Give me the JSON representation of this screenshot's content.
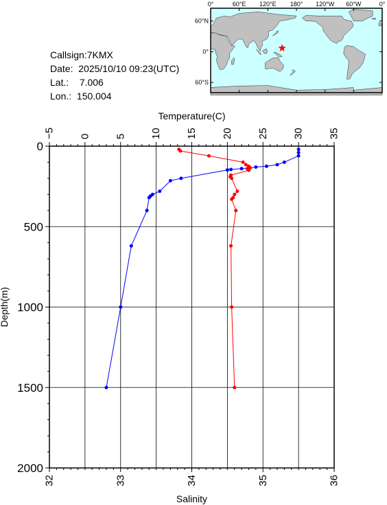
{
  "station": {
    "callsign_label": "Callsign:",
    "callsign": "7KMX",
    "date_label": "Date:",
    "date": "2025/10/10 09:23(UTC)",
    "lat_label": "Lat.:",
    "lat": "7.006",
    "lon_label": "Lon.:",
    "lon": "150.004"
  },
  "map": {
    "top_ticks": [
      "0°",
      "60°E",
      "120°E",
      "180°",
      "120°W",
      "60°W",
      "0°"
    ],
    "lat_ticks": [
      "60°N",
      "0°",
      "60°S"
    ],
    "marker": {
      "lat": 7.006,
      "lon": 150.004,
      "symbol": "star",
      "color": "#ff0000"
    },
    "ocean_color": "#ccffff",
    "land_color": "#c0c0c0"
  },
  "chart_data": {
    "type": "line",
    "title": "",
    "ylabel": "Depth(m)",
    "ylim": [
      0,
      2000
    ],
    "y_ticks": [
      0,
      500,
      1000,
      1500,
      2000
    ],
    "y_inverted": true,
    "grid": true,
    "top_axis": {
      "label": "Temperature(C)",
      "lim": [
        -5,
        35
      ],
      "ticks": [
        -5,
        0,
        5,
        10,
        15,
        20,
        25,
        30,
        35
      ]
    },
    "bottom_axis": {
      "label": "Salinity",
      "lim": [
        32,
        36
      ],
      "ticks": [
        32,
        33,
        34,
        35,
        36
      ]
    },
    "series": [
      {
        "axis": "top",
        "color": "#0000ff",
        "points": [
          [
            30.0,
            20
          ],
          [
            30.0,
            40
          ],
          [
            30.0,
            60
          ],
          [
            28.0,
            100
          ],
          [
            27.0,
            115
          ],
          [
            25.5,
            125
          ],
          [
            24.0,
            130
          ],
          [
            23.0,
            135
          ],
          [
            22.0,
            140
          ],
          [
            20.5,
            145
          ],
          [
            20.0,
            148
          ],
          [
            13.5,
            200
          ],
          [
            12.0,
            215
          ],
          [
            10.5,
            280
          ],
          [
            9.5,
            300
          ],
          [
            9.2,
            310
          ],
          [
            9.0,
            320
          ],
          [
            8.7,
            400
          ],
          [
            6.5,
            620
          ],
          [
            5.0,
            1000
          ],
          [
            3.0,
            1500
          ]
        ]
      },
      {
        "axis": "bottom",
        "color": "#ff0000",
        "points": [
          [
            33.82,
            20
          ],
          [
            33.84,
            30
          ],
          [
            34.24,
            60
          ],
          [
            34.72,
            100
          ],
          [
            34.76,
            115
          ],
          [
            34.8,
            125
          ],
          [
            34.82,
            135
          ],
          [
            34.78,
            140
          ],
          [
            34.8,
            150
          ],
          [
            34.55,
            180
          ],
          [
            34.54,
            190
          ],
          [
            34.56,
            200
          ],
          [
            34.64,
            280
          ],
          [
            34.6,
            300
          ],
          [
            34.58,
            320
          ],
          [
            34.56,
            330
          ],
          [
            34.62,
            400
          ],
          [
            34.55,
            620
          ],
          [
            34.56,
            1000
          ],
          [
            34.6,
            1500
          ]
        ]
      }
    ]
  }
}
